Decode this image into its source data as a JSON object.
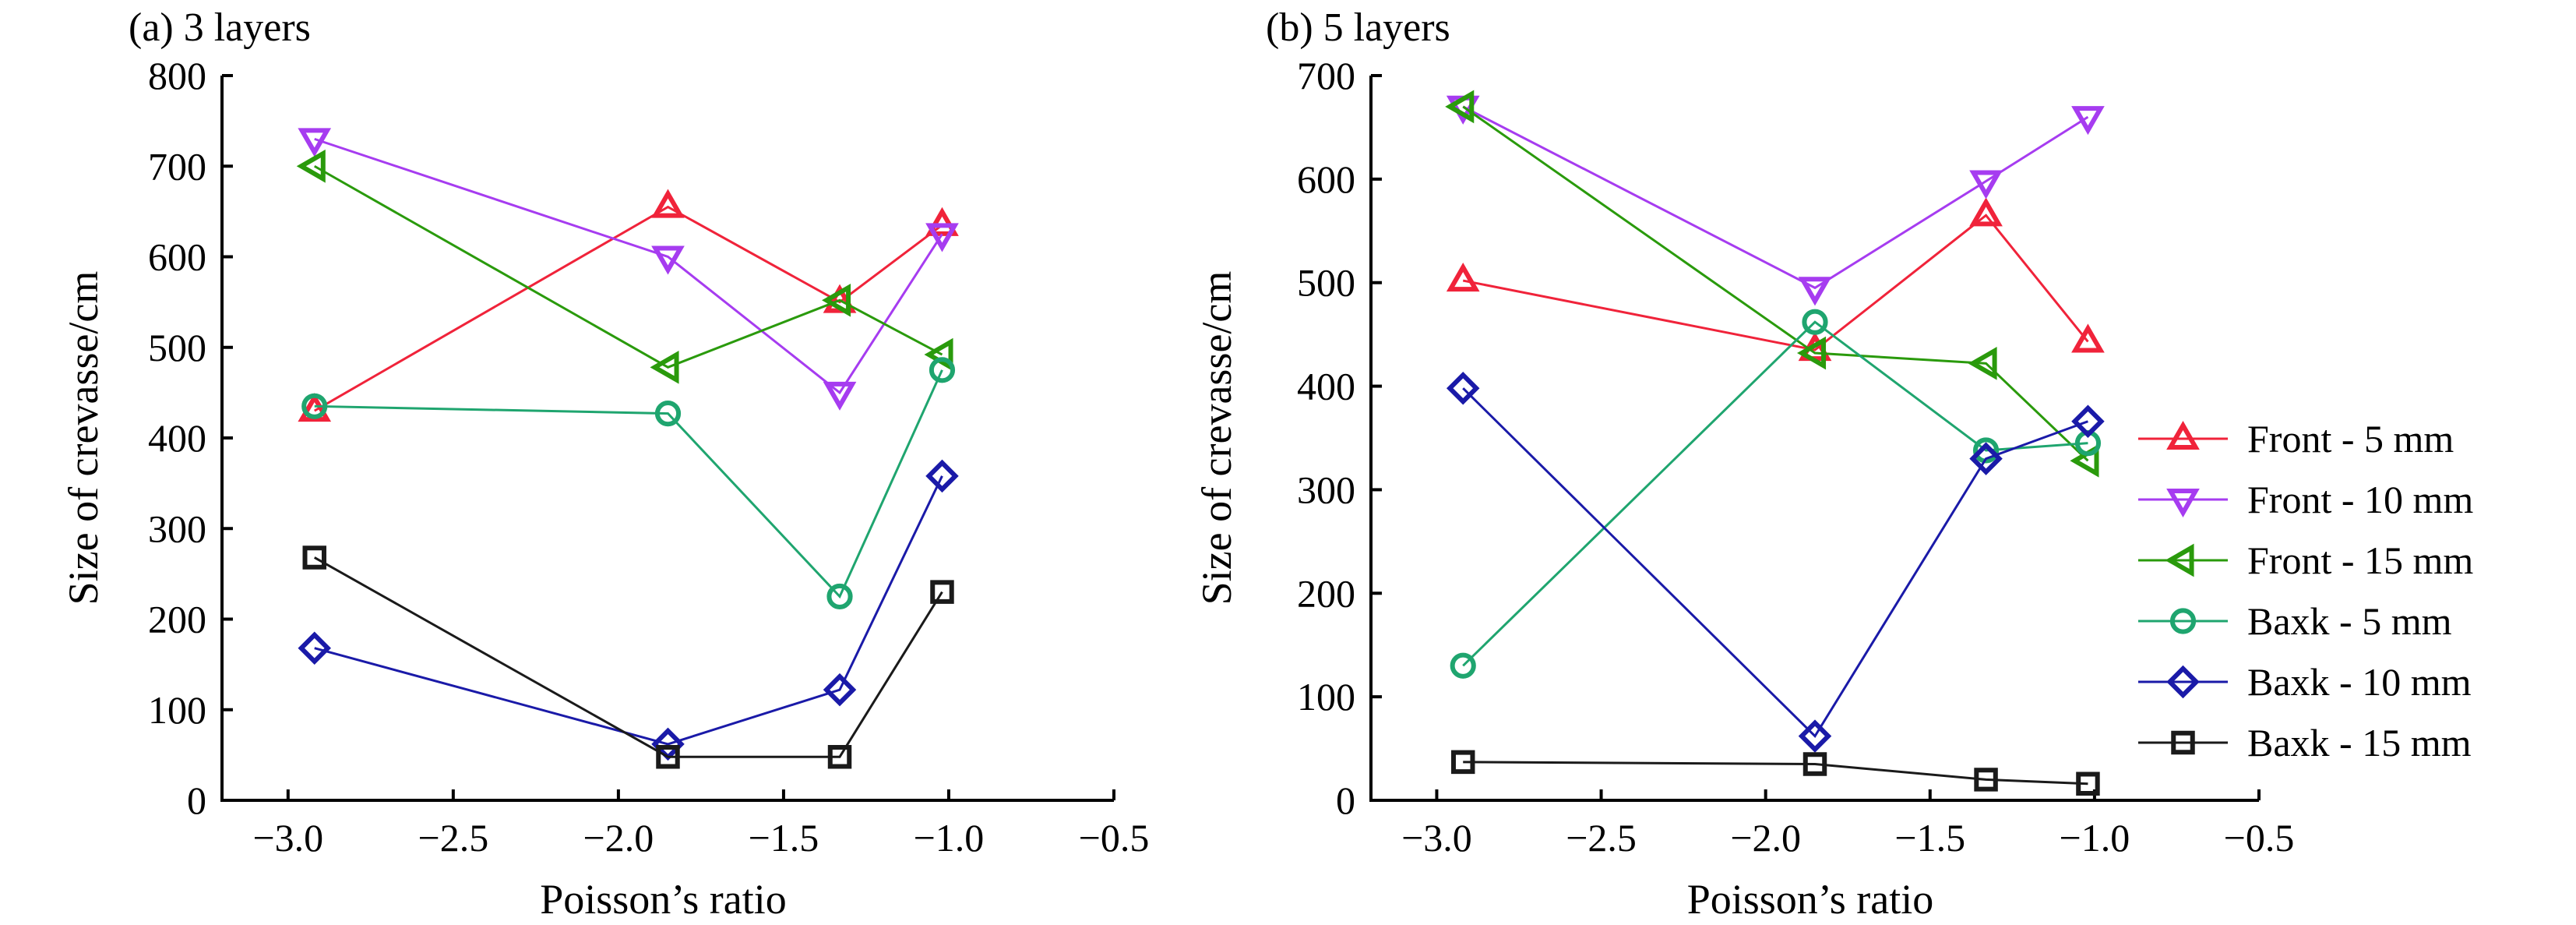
{
  "chart_data": [
    {
      "type": "line",
      "title": "(a) 3 layers",
      "xlabel": "Poisson’s ratio",
      "ylabel": "Size of crevasse/cm",
      "xlim": [
        -3.2,
        -0.5
      ],
      "ylim": [
        0,
        800
      ],
      "xticks": [
        -3.0,
        -2.5,
        -2.0,
        -1.5,
        -1.0,
        -0.5
      ],
      "xtick_labels": [
        "−3.0",
        "−2.5",
        "−2.0",
        "−1.5",
        "−1.0",
        "−0.5"
      ],
      "yticks": [
        0,
        100,
        200,
        300,
        400,
        500,
        600,
        700,
        800
      ],
      "ytick_labels": [
        "0",
        "100",
        "200",
        "300",
        "400",
        "500",
        "600",
        "700",
        "800"
      ],
      "x": [
        -2.92,
        -1.85,
        -1.33,
        -1.02
      ],
      "grid": false,
      "series": [
        {
          "name": "Front - 5 mm",
          "values": [
            430,
            655,
            550,
            635
          ],
          "color": "#f0233a",
          "marker": "triangle-up"
        },
        {
          "name": "Front - 10 mm",
          "values": [
            730,
            600,
            450,
            625
          ],
          "color": "#a63cf0",
          "marker": "triangle-down"
        },
        {
          "name": "Front - 15 mm",
          "values": [
            700,
            478,
            552,
            492
          ],
          "color": "#2a9a0c",
          "marker": "triangle-left"
        },
        {
          "name": "Baxk - 5 mm",
          "values": [
            435,
            427,
            225,
            475
          ],
          "color": "#1fa56f",
          "marker": "circle"
        },
        {
          "name": "Baxk - 10 mm",
          "values": [
            168,
            62,
            122,
            358
          ],
          "color": "#1a1aa8",
          "marker": "diamond"
        },
        {
          "name": "Baxk - 15 mm",
          "values": [
            268,
            48,
            48,
            230
          ],
          "color": "#1a1a1a",
          "marker": "square"
        }
      ]
    },
    {
      "type": "line",
      "title": "(b) 5 layers",
      "xlabel": "Poisson’s ratio",
      "ylabel": "Size of crevasse/cm",
      "xlim": [
        -3.2,
        -0.5
      ],
      "ylim": [
        0,
        700
      ],
      "xticks": [
        -3.0,
        -2.5,
        -2.0,
        -1.5,
        -1.0,
        -0.5
      ],
      "xtick_labels": [
        "−3.0",
        "−2.5",
        "−2.0",
        "−1.5",
        "−1.0",
        "−0.5"
      ],
      "yticks": [
        0,
        100,
        200,
        300,
        400,
        500,
        600,
        700
      ],
      "ytick_labels": [
        "0",
        "100",
        "200",
        "300",
        "400",
        "500",
        "600",
        "700"
      ],
      "x": [
        -2.92,
        -1.85,
        -1.33,
        -1.02
      ],
      "grid": false,
      "legend": "right",
      "series": [
        {
          "name": "Front - 5 mm",
          "values": [
            502,
            435,
            565,
            443
          ],
          "color": "#f0233a",
          "marker": "triangle-up"
        },
        {
          "name": "Front - 10 mm",
          "values": [
            670,
            495,
            598,
            660
          ],
          "color": "#a63cf0",
          "marker": "triangle-down"
        },
        {
          "name": "Front - 15 mm",
          "values": [
            670,
            432,
            422,
            328
          ],
          "color": "#2a9a0c",
          "marker": "triangle-left"
        },
        {
          "name": "Baxk - 5 mm",
          "values": [
            130,
            462,
            338,
            345
          ],
          "color": "#1fa56f",
          "marker": "circle"
        },
        {
          "name": "Baxk - 10 mm",
          "values": [
            398,
            62,
            330,
            366
          ],
          "color": "#1a1aa8",
          "marker": "diamond"
        },
        {
          "name": "Baxk - 15 mm",
          "values": [
            37,
            35,
            20,
            16
          ],
          "color": "#1a1a1a",
          "marker": "square"
        }
      ]
    }
  ]
}
